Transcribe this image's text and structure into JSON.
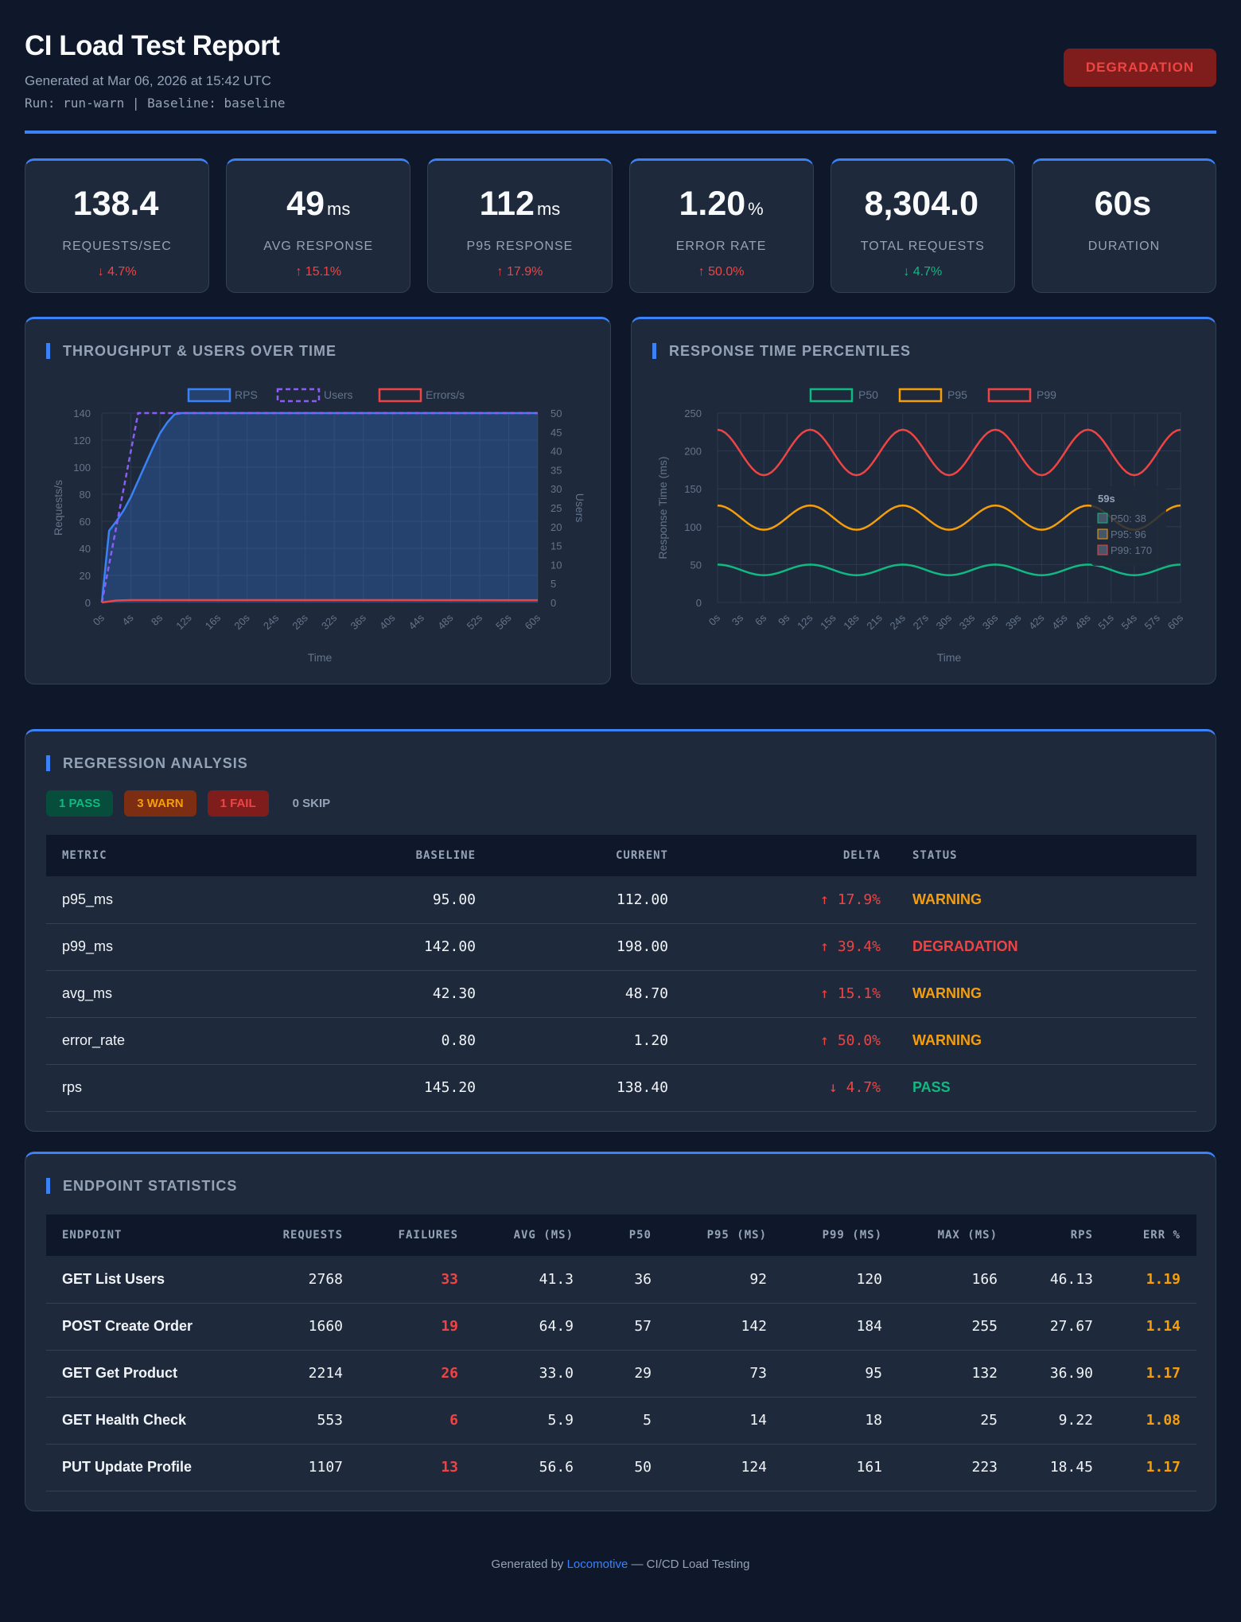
{
  "header": {
    "title": "CI Load Test Report",
    "generated": "Generated at Mar 06, 2026 at 15:42 UTC",
    "run_info": "Run: run-warn | Baseline: baseline",
    "status": "DEGRADATION"
  },
  "kpis": [
    {
      "value": "138.4",
      "unit": "",
      "label": "REQUESTS/SEC",
      "delta": "↓ 4.7%",
      "tone": "red"
    },
    {
      "value": "49",
      "unit": "ms",
      "label": "AVG RESPONSE",
      "delta": "↑ 15.1%",
      "tone": "red"
    },
    {
      "value": "112",
      "unit": "ms",
      "label": "P95 RESPONSE",
      "delta": "↑ 17.9%",
      "tone": "red"
    },
    {
      "value": "1.20",
      "unit": "%",
      "label": "ERROR RATE",
      "delta": "↑ 50.0%",
      "tone": "red"
    },
    {
      "value": "8,304.0",
      "unit": "",
      "label": "TOTAL REQUESTS",
      "delta": "↓ 4.7%",
      "tone": "green"
    },
    {
      "value": "60s",
      "unit": "",
      "label": "DURATION",
      "delta": "",
      "tone": ""
    }
  ],
  "throughput_panel": {
    "title": "THROUGHPUT & USERS OVER TIME"
  },
  "percentile_panel": {
    "title": "RESPONSE TIME PERCENTILES"
  },
  "chart_data": [
    {
      "type": "line",
      "title": "",
      "xlabel": "Time",
      "ylabel": "Requests/s",
      "y2label": "Users",
      "xlim": [
        0,
        60
      ],
      "ylim": [
        0,
        140
      ],
      "y2lim": [
        0,
        50
      ],
      "x_ticks": [
        "0s",
        "4s",
        "8s",
        "12s",
        "16s",
        "20s",
        "24s",
        "28s",
        "32s",
        "36s",
        "40s",
        "44s",
        "48s",
        "52s",
        "56s",
        "60s"
      ],
      "y_ticks": [
        0,
        20,
        40,
        60,
        80,
        100,
        120,
        140
      ],
      "y2_ticks": [
        0,
        5,
        10,
        15,
        20,
        25,
        30,
        35,
        40,
        45,
        50
      ],
      "legend": "top-center",
      "series": [
        {
          "name": "RPS",
          "axis": "left",
          "color": "#3b82f6",
          "style": "area",
          "points": [
            [
              0,
              0
            ],
            [
              1,
              53
            ],
            [
              2,
              60
            ],
            [
              3,
              68
            ],
            [
              4,
              78
            ],
            [
              5,
              90
            ],
            [
              6,
              102
            ],
            [
              7,
              114
            ],
            [
              8,
              125
            ],
            [
              9,
              133
            ],
            [
              10,
              139
            ],
            [
              11,
              140
            ],
            [
              60,
              140
            ]
          ]
        },
        {
          "name": "Users",
          "axis": "right",
          "color": "#8b5cf6",
          "style": "dashed",
          "points": [
            [
              0,
              0
            ],
            [
              1,
              10
            ],
            [
              2,
              20
            ],
            [
              3,
              30
            ],
            [
              4,
              40
            ],
            [
              5,
              50
            ],
            [
              60,
              50
            ]
          ]
        },
        {
          "name": "Errors/s",
          "axis": "left",
          "color": "#ef4444",
          "style": "line",
          "points": [
            [
              0,
              0
            ],
            [
              2,
              1.5
            ],
            [
              4,
              1.8
            ],
            [
              60,
              1.7
            ]
          ]
        }
      ]
    },
    {
      "type": "line",
      "title": "",
      "xlabel": "Time",
      "ylabel": "Response Time (ms)",
      "xlim": [
        0,
        60
      ],
      "ylim": [
        0,
        250
      ],
      "x_ticks": [
        "0s",
        "3s",
        "6s",
        "9s",
        "12s",
        "15s",
        "18s",
        "21s",
        "24s",
        "27s",
        "30s",
        "33s",
        "36s",
        "39s",
        "42s",
        "45s",
        "48s",
        "51s",
        "54s",
        "57s",
        "60s"
      ],
      "y_ticks": [
        0,
        50,
        100,
        150,
        200,
        250
      ],
      "legend": "top-center",
      "tooltip": {
        "title": "59s",
        "lines": [
          "P50: 38",
          "P95: 96",
          "P99: 170"
        ]
      },
      "series": [
        {
          "name": "P50",
          "color": "#10b981",
          "mean": 43,
          "amp": 7,
          "period": 12,
          "phase": 3
        },
        {
          "name": "P95",
          "color": "#f59e0b",
          "mean": 112,
          "amp": 16,
          "period": 12,
          "phase": 3
        },
        {
          "name": "P99",
          "color": "#ef4444",
          "mean": 198,
          "amp": 30,
          "period": 12,
          "phase": 3
        }
      ]
    }
  ],
  "regression": {
    "title": "REGRESSION ANALYSIS",
    "chips": {
      "pass": "1 PASS",
      "warn": "3 WARN",
      "fail": "1 FAIL",
      "skip": "0 SKIP"
    },
    "columns": [
      "METRIC",
      "BASELINE",
      "CURRENT",
      "DELTA",
      "STATUS"
    ],
    "rows": [
      {
        "metric": "p95_ms",
        "baseline": "95.00",
        "current": "112.00",
        "delta": "↑ 17.9%",
        "status": "WARNING",
        "cls": "st-warn",
        "dcls": "red"
      },
      {
        "metric": "p99_ms",
        "baseline": "142.00",
        "current": "198.00",
        "delta": "↑ 39.4%",
        "status": "DEGRADATION",
        "cls": "st-deg",
        "dcls": "red"
      },
      {
        "metric": "avg_ms",
        "baseline": "42.30",
        "current": "48.70",
        "delta": "↑ 15.1%",
        "status": "WARNING",
        "cls": "st-warn",
        "dcls": "red"
      },
      {
        "metric": "error_rate",
        "baseline": "0.80",
        "current": "1.20",
        "delta": "↑ 50.0%",
        "status": "WARNING",
        "cls": "st-warn",
        "dcls": "red"
      },
      {
        "metric": "rps",
        "baseline": "145.20",
        "current": "138.40",
        "delta": "↓ 4.7%",
        "status": "PASS",
        "cls": "st-pass",
        "dcls": "red"
      }
    ]
  },
  "endpoints": {
    "title": "ENDPOINT STATISTICS",
    "columns": [
      "ENDPOINT",
      "REQUESTS",
      "FAILURES",
      "AVG (MS)",
      "P50",
      "P95 (MS)",
      "P99 (MS)",
      "MAX (MS)",
      "RPS",
      "ERR %"
    ],
    "rows": [
      {
        "name": "GET List Users",
        "requests": "2768",
        "failures": "33",
        "avg": "41.3",
        "p50": "36",
        "p95": "92",
        "p99": "120",
        "max": "166",
        "rps": "46.13",
        "err": "1.19"
      },
      {
        "name": "POST Create Order",
        "requests": "1660",
        "failures": "19",
        "avg": "64.9",
        "p50": "57",
        "p95": "142",
        "p99": "184",
        "max": "255",
        "rps": "27.67",
        "err": "1.14"
      },
      {
        "name": "GET Get Product",
        "requests": "2214",
        "failures": "26",
        "avg": "33.0",
        "p50": "29",
        "p95": "73",
        "p99": "95",
        "max": "132",
        "rps": "36.90",
        "err": "1.17"
      },
      {
        "name": "GET Health Check",
        "requests": "553",
        "failures": "6",
        "avg": "5.9",
        "p50": "5",
        "p95": "14",
        "p99": "18",
        "max": "25",
        "rps": "9.22",
        "err": "1.08"
      },
      {
        "name": "PUT Update Profile",
        "requests": "1107",
        "failures": "13",
        "avg": "56.6",
        "p50": "50",
        "p95": "124",
        "p99": "161",
        "max": "223",
        "rps": "18.45",
        "err": "1.17"
      }
    ]
  },
  "footer": {
    "prefix": "Generated by ",
    "link": "Locomotive",
    "suffix": " — CI/CD Load Testing"
  }
}
